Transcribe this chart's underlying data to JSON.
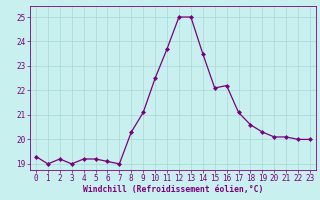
{
  "x": [
    0,
    1,
    2,
    3,
    4,
    5,
    6,
    7,
    8,
    9,
    10,
    11,
    12,
    13,
    14,
    15,
    16,
    17,
    18,
    19,
    20,
    21,
    22,
    23
  ],
  "y": [
    19.3,
    19.0,
    19.2,
    19.0,
    19.2,
    19.2,
    19.1,
    19.0,
    20.3,
    21.1,
    22.5,
    23.7,
    25.0,
    25.0,
    23.5,
    22.1,
    22.2,
    21.1,
    20.6,
    20.3,
    20.1,
    20.1,
    20.0,
    20.0
  ],
  "line_color": "#7b0080",
  "marker": "D",
  "markersize": 2.0,
  "linewidth": 0.9,
  "bg_color": "#c8f0ee",
  "grid_color": "#a8d8d4",
  "xlabel": "Windchill (Refroidissement éolien,°C)",
  "ylabel": "",
  "xlim": [
    -0.5,
    23.5
  ],
  "ylim": [
    18.75,
    25.45
  ],
  "yticks": [
    19,
    20,
    21,
    22,
    23,
    24,
    25
  ],
  "xticks": [
    0,
    1,
    2,
    3,
    4,
    5,
    6,
    7,
    8,
    9,
    10,
    11,
    12,
    13,
    14,
    15,
    16,
    17,
    18,
    19,
    20,
    21,
    22,
    23
  ],
  "tick_color": "#7b0080",
  "label_color": "#7b0080",
  "axis_color": "#7b0080",
  "tick_fontsize": 5.5,
  "xlabel_fontsize": 5.8
}
